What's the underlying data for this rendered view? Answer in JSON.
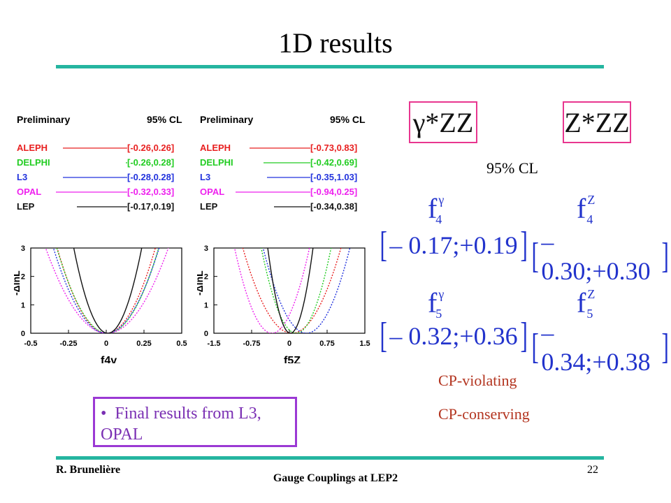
{
  "slide": {
    "title": "1D results",
    "labels": {
      "gamma_zz": "γ*ZZ",
      "z_zz": "Z*ZZ",
      "cl": "95% CL"
    },
    "results": [
      {
        "id": "f4g",
        "symbol": "f",
        "sub": "4",
        "sup": "γ",
        "interval": "– 0.17;+0.19"
      },
      {
        "id": "f4z",
        "symbol": "f",
        "sub": "4",
        "sup": "Z",
        "interval": "– 0.30;+0.30"
      },
      {
        "id": "f5g",
        "symbol": "f",
        "sub": "5",
        "sup": "γ",
        "interval": "– 0.32;+0.36"
      },
      {
        "id": "f5z",
        "symbol": "f",
        "sub": "5",
        "sup": "Z",
        "interval": "– 0.34;+0.38"
      }
    ],
    "cp_violating": "CP-violating",
    "cp_conserving": "CP-conserving",
    "bullet": "Final results from L3, OPAL",
    "footer": {
      "author": "R. Brunelière",
      "title": "Gauge Couplings at LEP2",
      "page": "22"
    }
  },
  "chart_data": [
    {
      "type": "line",
      "header": {
        "left": "Preliminary",
        "right": "95% CL"
      },
      "legend": [
        {
          "name": "ALEPH",
          "interval": "[-0.26,0.26]",
          "color": "#e82020"
        },
        {
          "name": "DELPHI",
          "interval": "[-0.26,0.28]",
          "color": "#22cc22"
        },
        {
          "name": "L3",
          "interval": "[-0.28,0.28]",
          "color": "#2233dd"
        },
        {
          "name": "OPAL",
          "interval": "[-0.32,0.33]",
          "color": "#ee22ee"
        },
        {
          "name": "LEP",
          "interval": "[-0.17,0.19]",
          "color": "#111111"
        }
      ],
      "xlabel": "f4γ",
      "ylabel": "-ΔlnL",
      "xlim": [
        -0.5,
        0.5
      ],
      "ylim": [
        0,
        3
      ],
      "xticks": [
        "-0.5",
        "-0.25",
        "0",
        "0.25",
        "0.5"
      ],
      "yticks": [
        "0",
        "1",
        "2",
        "3"
      ],
      "series": [
        {
          "name": "ALEPH",
          "center": 0.0,
          "half_width": 0.26
        },
        {
          "name": "DELPHI",
          "center": 0.01,
          "half_width": 0.27
        },
        {
          "name": "L3",
          "center": 0.0,
          "half_width": 0.28
        },
        {
          "name": "OPAL",
          "center": 0.005,
          "half_width": 0.325
        },
        {
          "name": "LEP",
          "center": 0.01,
          "half_width": 0.18
        }
      ]
    },
    {
      "type": "line",
      "header": {
        "left": "Preliminary",
        "right": "95% CL"
      },
      "legend": [
        {
          "name": "ALEPH",
          "interval": "[-0.73,0.83]",
          "color": "#e82020"
        },
        {
          "name": "DELPHI",
          "interval": "[-0.42,0.69]",
          "color": "#22cc22"
        },
        {
          "name": "L3",
          "interval": "[-0.35,1.03]",
          "color": "#2233dd"
        },
        {
          "name": "OPAL",
          "interval": "[-0.94,0.25]",
          "color": "#ee22ee"
        },
        {
          "name": "LEP",
          "interval": "[-0.34,0.38]",
          "color": "#111111"
        }
      ],
      "xlabel": "f5Z",
      "ylabel": "-ΔlnL",
      "xlim": [
        -1.5,
        1.5
      ],
      "ylim": [
        0,
        3
      ],
      "xticks": [
        "-1.5",
        "-0.75",
        "0",
        "0.75",
        "1.5"
      ],
      "yticks": [
        "0",
        "1",
        "2",
        "3"
      ],
      "series": [
        {
          "name": "ALEPH",
          "center": 0.05,
          "half_width": 0.78
        },
        {
          "name": "DELPHI",
          "center": 0.135,
          "half_width": 0.555
        },
        {
          "name": "L3",
          "center": 0.34,
          "half_width": 0.69
        },
        {
          "name": "OPAL",
          "center": -0.345,
          "half_width": 0.595
        },
        {
          "name": "LEP",
          "center": 0.02,
          "half_width": 0.36
        }
      ]
    }
  ]
}
